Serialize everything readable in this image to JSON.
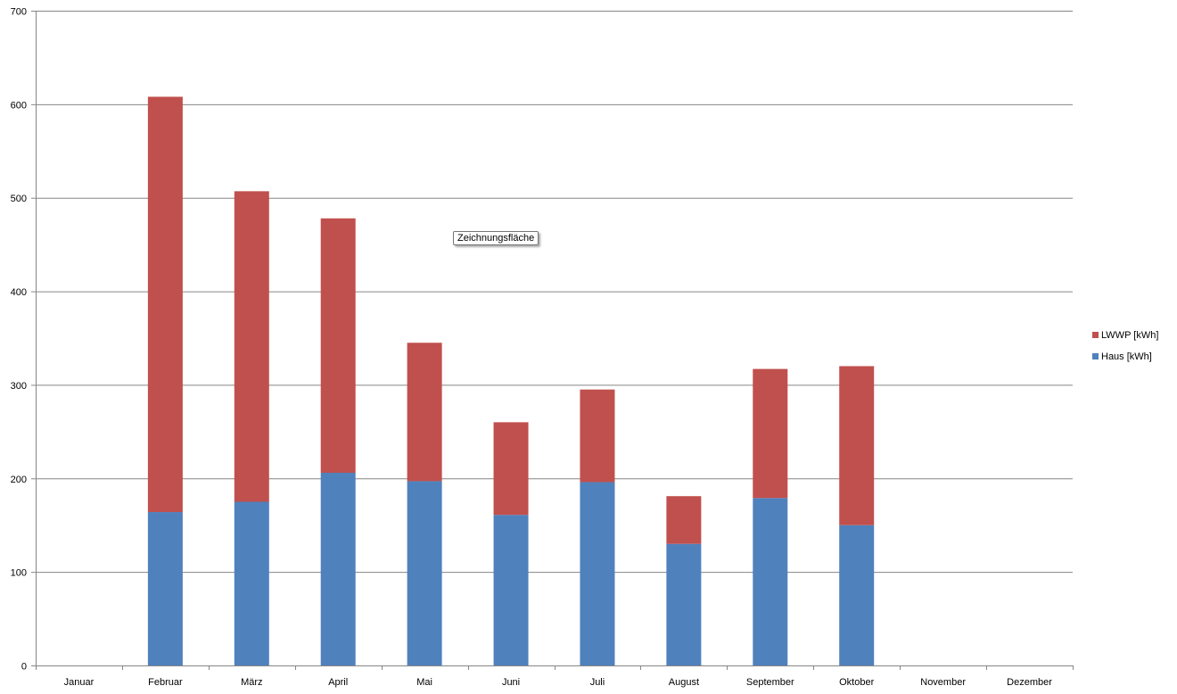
{
  "chart_data": {
    "type": "bar",
    "stacked": true,
    "categories": [
      "Januar",
      "Februar",
      "März",
      "April",
      "Mai",
      "Juni",
      "Juli",
      "August",
      "September",
      "Oktober",
      "November",
      "Dezember"
    ],
    "series": [
      {
        "name": "Haus [kWh]",
        "color": "#4F81BD",
        "values": [
          0,
          164,
          175,
          206,
          197,
          161,
          196,
          130,
          179,
          150,
          0,
          0
        ]
      },
      {
        "name": "LWWP [kWh]",
        "color": "#C0504D",
        "values": [
          0,
          444,
          332,
          272,
          148,
          99,
          99,
          51,
          138,
          170,
          0,
          0
        ]
      }
    ],
    "ylim": [
      0,
      700
    ],
    "yticks": [
      0,
      100,
      200,
      300,
      400,
      500,
      600,
      700
    ],
    "grid": true,
    "legend_position": "right",
    "xlabel": "",
    "ylabel": ""
  },
  "tooltip": "Zeichnungsfläche"
}
